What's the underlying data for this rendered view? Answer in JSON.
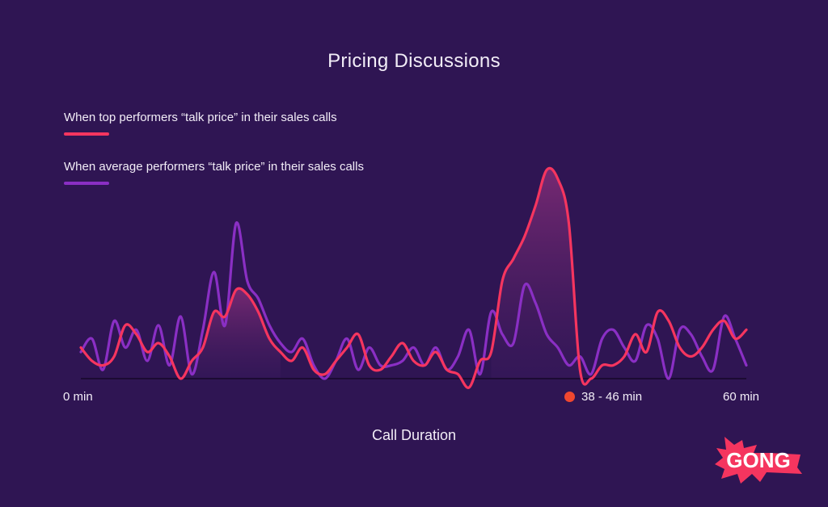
{
  "chart_data": {
    "type": "line",
    "title": "Pricing Discussions",
    "xlabel": "Call Duration",
    "ylabel": "",
    "xlim": [
      0,
      60
    ],
    "x_tick_labels": [
      "0 min",
      "60 min"
    ],
    "highlight": {
      "label": "38 - 46 min",
      "color": "#f0472f",
      "range": [
        38,
        46
      ]
    },
    "grid": false,
    "legend_position": "top-left",
    "x": [
      0,
      1,
      2,
      3,
      4,
      5,
      6,
      7,
      8,
      9,
      10,
      11,
      12,
      13,
      14,
      15,
      16,
      17,
      18,
      19,
      20,
      21,
      22,
      23,
      24,
      25,
      26,
      27,
      28,
      29,
      30,
      31,
      32,
      33,
      34,
      35,
      36,
      37,
      38,
      39,
      40,
      41,
      42,
      43,
      44,
      45,
      46,
      47,
      48,
      49,
      50,
      51,
      52,
      53,
      54,
      55,
      56,
      57,
      58,
      59,
      60
    ],
    "series": [
      {
        "name": "When top performers “talk price” in their sales calls",
        "color": "#f5355f",
        "values": [
          14,
          8,
          6,
          10,
          24,
          20,
          12,
          16,
          10,
          0,
          8,
          14,
          30,
          28,
          40,
          38,
          30,
          18,
          12,
          8,
          14,
          4,
          2,
          8,
          14,
          20,
          6,
          4,
          10,
          16,
          8,
          6,
          12,
          4,
          2,
          -4,
          8,
          12,
          44,
          54,
          64,
          78,
          94,
          90,
          70,
          4,
          0,
          6,
          6,
          10,
          20,
          12,
          30,
          26,
          14,
          10,
          14,
          22,
          26,
          18,
          22
        ]
      },
      {
        "name": "When average performers “talk price” in their sales calls",
        "color": "#8a2fc4",
        "values": [
          12,
          18,
          4,
          26,
          14,
          22,
          8,
          24,
          6,
          28,
          2,
          22,
          48,
          24,
          70,
          44,
          36,
          24,
          16,
          12,
          18,
          6,
          0,
          8,
          18,
          4,
          14,
          6,
          6,
          8,
          14,
          6,
          14,
          4,
          10,
          22,
          2,
          30,
          20,
          16,
          42,
          34,
          20,
          14,
          6,
          10,
          2,
          18,
          22,
          14,
          8,
          24,
          18,
          0,
          22,
          20,
          10,
          4,
          28,
          18,
          6
        ]
      }
    ]
  },
  "logo": {
    "text": "GONG",
    "color": "#f5355f"
  }
}
